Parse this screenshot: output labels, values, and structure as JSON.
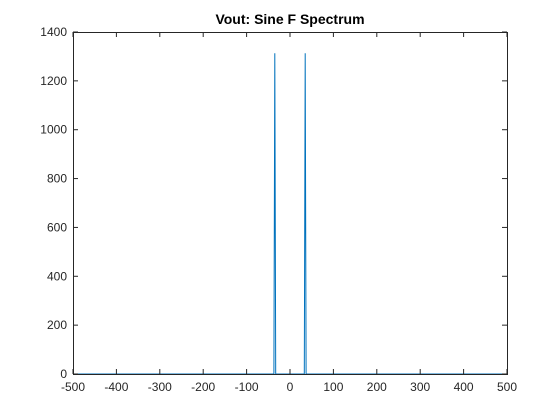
{
  "chart_data": {
    "type": "line",
    "title": "Vout: Sine F Spectrum",
    "xlabel": "",
    "ylabel": "",
    "xlim": [
      -500,
      500
    ],
    "ylim": [
      0,
      1400
    ],
    "grid": false,
    "x_ticks": [
      -500,
      -400,
      -300,
      -200,
      -100,
      0,
      100,
      200,
      300,
      400,
      500
    ],
    "y_ticks": [
      0,
      200,
      400,
      600,
      800,
      1000,
      1200,
      1400
    ],
    "series": [
      {
        "color": "#0072bd",
        "x": [
          -500,
          -37,
          -35,
          -33,
          0,
          33,
          35,
          37,
          500
        ],
        "y": [
          0,
          0,
          1313,
          0,
          0,
          0,
          1313,
          0,
          0
        ]
      }
    ]
  }
}
